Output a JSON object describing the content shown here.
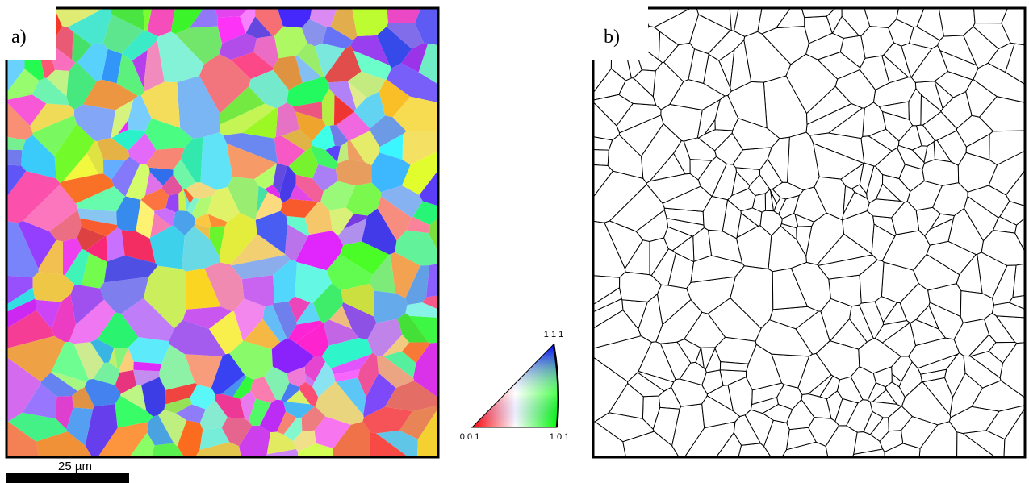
{
  "panels": {
    "a": {
      "label": "a)"
    },
    "b": {
      "label": "b)"
    }
  },
  "scale_bar": {
    "label": "25 µm"
  },
  "color_key": {
    "top": "1 1 1",
    "left": "0 0 1",
    "right": "1 0 1"
  }
}
